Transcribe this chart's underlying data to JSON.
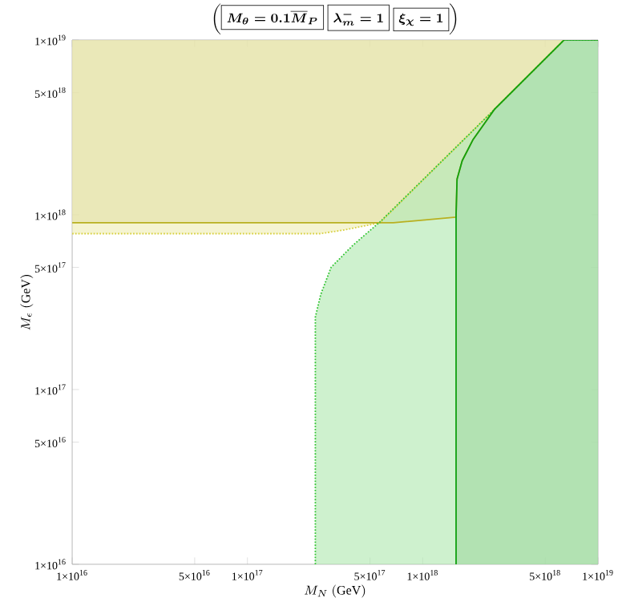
{
  "chart_data": {
    "type": "line",
    "title": "\\left(\\boxed{\\boldsymbol{M_{\\theta} = 0.1\\overline{M}_{P}}}\\;\\boxed{\\boldsymbol{\\lambda_{m}^{-} = 1}}\\;\\boxed{\\boldsymbol{\\xi_{\\chi} = 1}}\\right)",
    "xlabel": "M_{N}\\ (\\mathrm{GeV})",
    "ylabel": "M_{\\epsilon}\\ (\\mathrm{GeV})",
    "log": "xy",
    "xlim": [
      1e+16,
      1e+19
    ],
    "ylim": [
      1e+16,
      1e+19
    ],
    "xticks": [
      {
        "value": 1e+16,
        "label": "1×10$^{16}$"
      },
      {
        "value": 5e+16,
        "label": "5×10$^{16}$"
      },
      {
        "value": 1e+17,
        "label": "1×10$^{17}$"
      },
      {
        "value": 5e+17,
        "label": "5×10$^{17}$"
      },
      {
        "value": 1e+18,
        "label": "1×10$^{18}$"
      },
      {
        "value": 5e+18,
        "label": "5×10$^{18}$"
      },
      {
        "value": 1e+19,
        "label": "1×10$^{19}$"
      }
    ],
    "yticks": [
      {
        "value": 1e+16,
        "label": "1×10$^{16}$"
      },
      {
        "value": 5e+16,
        "label": "5×10$^{16}$"
      },
      {
        "value": 1e+17,
        "label": "1×10$^{17}$"
      },
      {
        "value": 5e+17,
        "label": "5×10$^{17}$"
      },
      {
        "value": 1e+18,
        "label": "1×10$^{18}$"
      },
      {
        "value": 5e+18,
        "label": "5×10$^{18}$"
      },
      {
        "value": 1e+19,
        "label": "1×10$^{19}$"
      }
    ],
    "series": [
      {
        "color": "#d8d040",
        "line_style": "dotted",
        "x": [
          1e+16,
          2.6e+17,
          3.6e+17,
          5.7e+17,
          2.56e+18,
          6.4e+18
        ],
        "values": [
          7.8e+17,
          7.8e+17,
          8.2e+17,
          9e+17,
          4e+18,
          1e+19
        ],
        "lower": [
          7.8e+17,
          7.8e+17,
          8.2e+17,
          9e+17,
          4e+18,
          1e+19
        ],
        "upper": [
          1e+19,
          1e+19,
          1e+19,
          1e+19,
          1e+19,
          1e+19
        ]
      },
      {
        "color": "#b8b020",
        "line_style": "solid",
        "x": [
          1e+16,
          6.8e+17,
          1.55e+18,
          1.57e+18,
          1.68e+18,
          1.94e+18,
          2.56e+18,
          6.4e+18
        ],
        "values": [
          9e+17,
          9e+17,
          9.7e+17,
          1.6e+18,
          2.04e+18,
          2.7e+18,
          4e+18,
          1e+19
        ],
        "lower": [
          9e+17,
          9e+17,
          9.7e+17,
          1.6e+18,
          2.04e+18,
          2.7e+18,
          4e+18,
          1e+19
        ],
        "upper": [
          1e+19,
          1e+19,
          1e+19,
          1e+19,
          1e+19,
          1e+19,
          1e+19,
          1e+19
        ]
      },
      {
        "color": "#33c433",
        "line_style": "dotted",
        "x": [
          2.44e+17,
          2.44e+17,
          2.62e+17,
          3e+17,
          4e+17,
          5.7e+17,
          2.56e+18,
          6.4e+18,
          1e+19
        ],
        "values": [
          1e+16,
          2.6e+17,
          3.5e+17,
          5e+17,
          6.7e+17,
          9.1e+17,
          4e+18,
          1e+19,
          1e+19
        ],
        "lower": [
          1e+16,
          1e+16,
          1e+16,
          1e+16,
          1e+16,
          1e+16,
          1e+16,
          1e+16,
          1e+16
        ],
        "upper": [
          1e+16,
          2.6e+17,
          3.5e+17,
          5e+17,
          6.7e+17,
          9.1e+17,
          4e+18,
          1e+19,
          1e+19
        ]
      },
      {
        "color": "#11a011",
        "line_style": "solid",
        "x": [
          1.55e+18,
          1.55e+18,
          1.57e+18,
          1.68e+18,
          1.94e+18,
          2.56e+18,
          6.4e+18,
          1e+19
        ],
        "values": [
          1e+16,
          1e+18,
          1.6e+18,
          2.04e+18,
          2.7e+18,
          4e+18,
          1e+19,
          1e+19
        ],
        "lower": [
          1e+16,
          1e+16,
          1e+16,
          1e+16,
          1e+16,
          1e+16,
          1e+16,
          1e+16
        ],
        "upper": [
          1e+16,
          1e+18,
          1.6e+18,
          2.04e+18,
          2.7e+18,
          4e+18,
          1e+19,
          1e+19
        ]
      }
    ]
  }
}
